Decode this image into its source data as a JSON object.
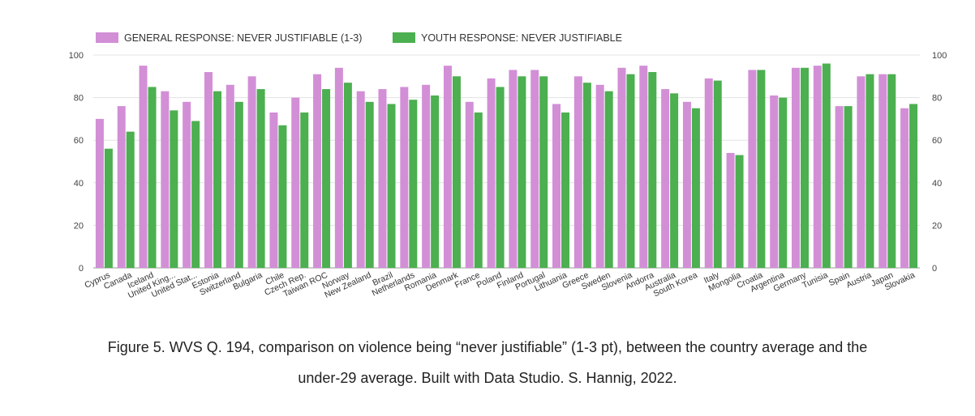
{
  "chart_data": {
    "type": "bar",
    "categories": [
      "Cyprus",
      "Canada",
      "Iceland",
      "United King...",
      "United Stat...",
      "Estonia",
      "Switzerland",
      "Bulgaria",
      "Chile",
      "Czech Rep.",
      "Taiwan ROC",
      "Norway",
      "New Zealand",
      "Brazil",
      "Netherlands",
      "Romania",
      "Denmark",
      "France",
      "Poland",
      "Finland",
      "Portugal",
      "Lithuania",
      "Greece",
      "Sweden",
      "Slovenia",
      "Andorra",
      "Australia",
      "South Korea",
      "Italy",
      "Mongolia",
      "Croatia",
      "Argentina",
      "Germany",
      "Tunisia",
      "Spain",
      "Austria",
      "Japan",
      "Slovakia"
    ],
    "series": [
      {
        "name": "GENERAL RESPONSE: NEVER JUSTIFIABLE (1-3)",
        "color": "#d28fd6",
        "values": [
          70,
          76,
          95,
          83,
          78,
          92,
          86,
          90,
          73,
          80,
          91,
          94,
          83,
          84,
          85,
          86,
          95,
          78,
          89,
          93,
          93,
          77,
          90,
          86,
          94,
          95,
          84,
          78,
          89,
          54,
          93,
          81,
          94,
          95,
          76,
          90,
          91,
          75
        ]
      },
      {
        "name": "YOUTH RESPONSE: NEVER JUSTIFIABLE",
        "color": "#4caf50",
        "values": [
          56,
          64,
          85,
          74,
          69,
          83,
          78,
          84,
          67,
          73,
          84,
          87,
          78,
          77,
          79,
          81,
          90,
          73,
          85,
          90,
          90,
          73,
          87,
          83,
          91,
          92,
          82,
          75,
          88,
          53,
          93,
          80,
          94,
          96,
          76,
          91,
          91,
          77
        ]
      }
    ],
    "ylim": [
      0,
      100
    ],
    "yticks": [
      0,
      20,
      40,
      60,
      80,
      100
    ],
    "grid": true,
    "legend_position": "top-left",
    "right_axis": true
  },
  "caption": {
    "line1": "Figure 5. WVS Q. 194, comparison on violence being “never justifiable” (1-3 pt), between the country average and the",
    "line2": "under-29 average. Built with Data Studio. S. Hannig, 2022."
  }
}
